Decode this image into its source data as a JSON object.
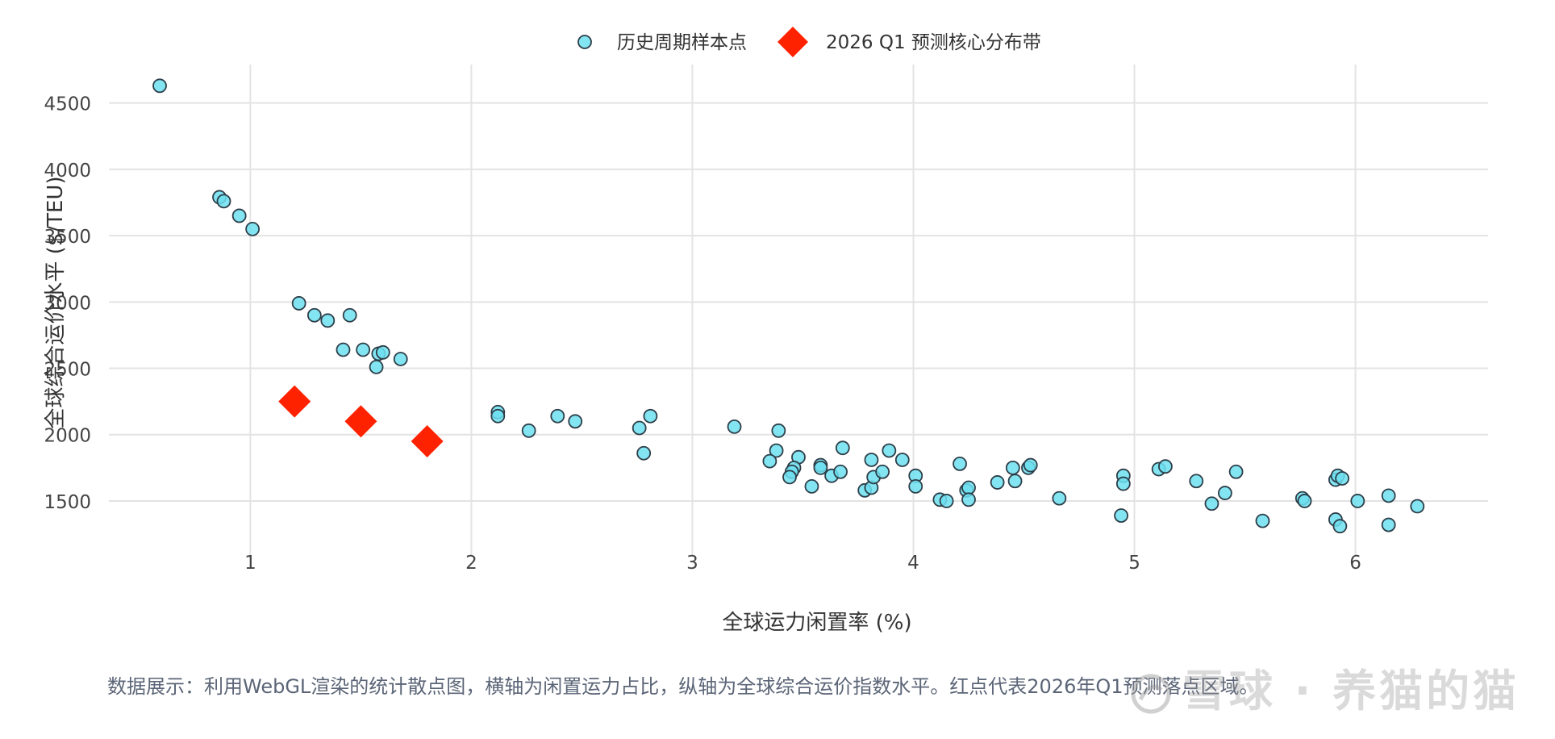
{
  "chart_data": {
    "type": "scatter",
    "xlabel": "全球运力闲置率 (%)",
    "ylabel": "全球综合运价水平 ($/TEU)",
    "xlim": [
      0.36,
      6.6
    ],
    "ylim": [
      1080,
      4790
    ],
    "x_ticks": [
      1,
      2,
      3,
      4,
      5,
      6
    ],
    "y_ticks": [
      1500,
      2000,
      2500,
      3000,
      3500,
      4000,
      4500
    ],
    "grid": true,
    "legend_position": "top-center",
    "series": [
      {
        "name": "历史周期样本点",
        "marker": "circle",
        "color": "#6ddff0",
        "points": [
          [
            0.59,
            4630
          ],
          [
            0.86,
            3790
          ],
          [
            0.88,
            3760
          ],
          [
            0.95,
            3650
          ],
          [
            1.01,
            3550
          ],
          [
            1.22,
            2990
          ],
          [
            1.29,
            2900
          ],
          [
            1.35,
            2860
          ],
          [
            1.45,
            2900
          ],
          [
            1.42,
            2640
          ],
          [
            1.51,
            2640
          ],
          [
            1.58,
            2610
          ],
          [
            1.6,
            2620
          ],
          [
            1.57,
            2510
          ],
          [
            1.68,
            2570
          ],
          [
            2.12,
            2170
          ],
          [
            2.12,
            2140
          ],
          [
            2.26,
            2030
          ],
          [
            2.39,
            2140
          ],
          [
            2.47,
            2100
          ],
          [
            2.76,
            2050
          ],
          [
            2.81,
            2140
          ],
          [
            2.78,
            1860
          ],
          [
            3.19,
            2060
          ],
          [
            3.39,
            2030
          ],
          [
            3.38,
            1880
          ],
          [
            3.35,
            1800
          ],
          [
            3.48,
            1830
          ],
          [
            3.46,
            1750
          ],
          [
            3.45,
            1720
          ],
          [
            3.44,
            1680
          ],
          [
            3.54,
            1610
          ],
          [
            3.58,
            1770
          ],
          [
            3.58,
            1750
          ],
          [
            3.63,
            1690
          ],
          [
            3.68,
            1900
          ],
          [
            3.67,
            1720
          ],
          [
            3.78,
            1580
          ],
          [
            3.81,
            1600
          ],
          [
            3.81,
            1810
          ],
          [
            3.82,
            1680
          ],
          [
            3.86,
            1720
          ],
          [
            3.89,
            1880
          ],
          [
            3.95,
            1810
          ],
          [
            4.01,
            1690
          ],
          [
            4.01,
            1610
          ],
          [
            4.12,
            1510
          ],
          [
            4.15,
            1500
          ],
          [
            4.21,
            1780
          ],
          [
            4.24,
            1580
          ],
          [
            4.25,
            1600
          ],
          [
            4.25,
            1510
          ],
          [
            4.38,
            1640
          ],
          [
            4.45,
            1750
          ],
          [
            4.46,
            1650
          ],
          [
            4.52,
            1750
          ],
          [
            4.53,
            1770
          ],
          [
            4.66,
            1520
          ],
          [
            4.95,
            1690
          ],
          [
            4.95,
            1630
          ],
          [
            4.94,
            1390
          ],
          [
            5.11,
            1740
          ],
          [
            5.14,
            1760
          ],
          [
            5.28,
            1650
          ],
          [
            5.35,
            1480
          ],
          [
            5.41,
            1560
          ],
          [
            5.46,
            1720
          ],
          [
            5.58,
            1350
          ],
          [
            5.76,
            1520
          ],
          [
            5.77,
            1500
          ],
          [
            5.91,
            1660
          ],
          [
            5.91,
            1360
          ],
          [
            5.93,
            1310
          ],
          [
            5.92,
            1690
          ],
          [
            5.94,
            1670
          ],
          [
            6.01,
            1500
          ],
          [
            6.15,
            1540
          ],
          [
            6.15,
            1320
          ],
          [
            6.28,
            1460
          ]
        ]
      },
      {
        "name": "2026 Q1 预测核心分布带",
        "marker": "diamond",
        "color": "#ff2200",
        "points": [
          [
            1.2,
            2250
          ],
          [
            1.5,
            2100
          ],
          [
            1.8,
            1950
          ]
        ]
      }
    ]
  },
  "caption": "数据展示：利用WebGL渲染的统计散点图，横轴为闲置运力占比，纵轴为全球综合运价指数水平。红点代表2026年Q1预测落点区域。",
  "watermark": "雪球 · 养猫的猫"
}
